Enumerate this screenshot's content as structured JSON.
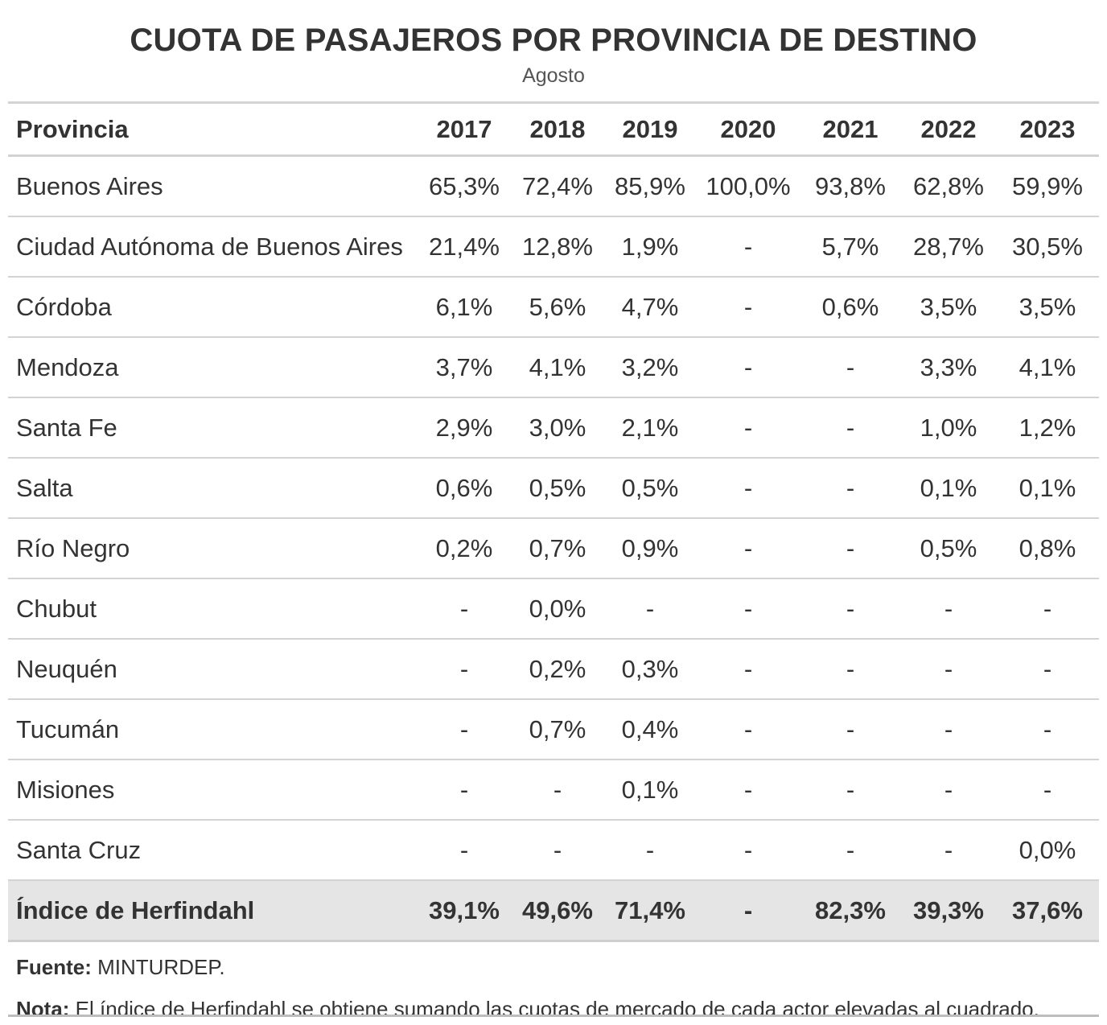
{
  "chart_data": {
    "type": "table",
    "title": "CUOTA DE PASAJEROS POR PROVINCIA DE DESTINO",
    "subtitle": "Agosto",
    "row_header": "Provincia",
    "columns": [
      "2017",
      "2018",
      "2019",
      "2020",
      "2021",
      "2022",
      "2023"
    ],
    "rows": [
      {
        "label": "Buenos Aires",
        "values": [
          "65,3%",
          "72,4%",
          "85,9%",
          "100,0%",
          "93,8%",
          "62,8%",
          "59,9%"
        ]
      },
      {
        "label": "Ciudad Autónoma de Buenos Aires",
        "values": [
          "21,4%",
          "12,8%",
          "1,9%",
          "-",
          "5,7%",
          "28,7%",
          "30,5%"
        ]
      },
      {
        "label": "Córdoba",
        "values": [
          "6,1%",
          "5,6%",
          "4,7%",
          "-",
          "0,6%",
          "3,5%",
          "3,5%"
        ]
      },
      {
        "label": "Mendoza",
        "values": [
          "3,7%",
          "4,1%",
          "3,2%",
          "-",
          "-",
          "3,3%",
          "4,1%"
        ]
      },
      {
        "label": "Santa Fe",
        "values": [
          "2,9%",
          "3,0%",
          "2,1%",
          "-",
          "-",
          "1,0%",
          "1,2%"
        ]
      },
      {
        "label": "Salta",
        "values": [
          "0,6%",
          "0,5%",
          "0,5%",
          "-",
          "-",
          "0,1%",
          "0,1%"
        ]
      },
      {
        "label": "Río Negro",
        "values": [
          "0,2%",
          "0,7%",
          "0,9%",
          "-",
          "-",
          "0,5%",
          "0,8%"
        ]
      },
      {
        "label": "Chubut",
        "values": [
          "-",
          "0,0%",
          "-",
          "-",
          "-",
          "-",
          "-"
        ]
      },
      {
        "label": "Neuquén",
        "values": [
          "-",
          "0,2%",
          "0,3%",
          "-",
          "-",
          "-",
          "-"
        ]
      },
      {
        "label": "Tucumán",
        "values": [
          "-",
          "0,7%",
          "0,4%",
          "-",
          "-",
          "-",
          "-"
        ]
      },
      {
        "label": "Misiones",
        "values": [
          "-",
          "-",
          "0,1%",
          "-",
          "-",
          "-",
          "-"
        ]
      },
      {
        "label": "Santa Cruz",
        "values": [
          "-",
          "-",
          "-",
          "-",
          "-",
          "-",
          "0,0%"
        ]
      }
    ],
    "total_row": {
      "label": "Índice de Herfindahl",
      "values": [
        "39,1%",
        "49,6%",
        "71,4%",
        "-",
        "82,3%",
        "39,3%",
        "37,6%"
      ]
    }
  },
  "footer": {
    "source_label": "Fuente:",
    "source_text": "MINTURDEP.",
    "note_label": "Nota:",
    "note_text": "El índice de Herfindahl se obtiene sumando las cuotas de mercado de cada actor elevadas al cuadrado."
  },
  "colors": {
    "text": "#333333",
    "rule": "#d3d3d3",
    "total_bg": "#e5e5e5"
  }
}
